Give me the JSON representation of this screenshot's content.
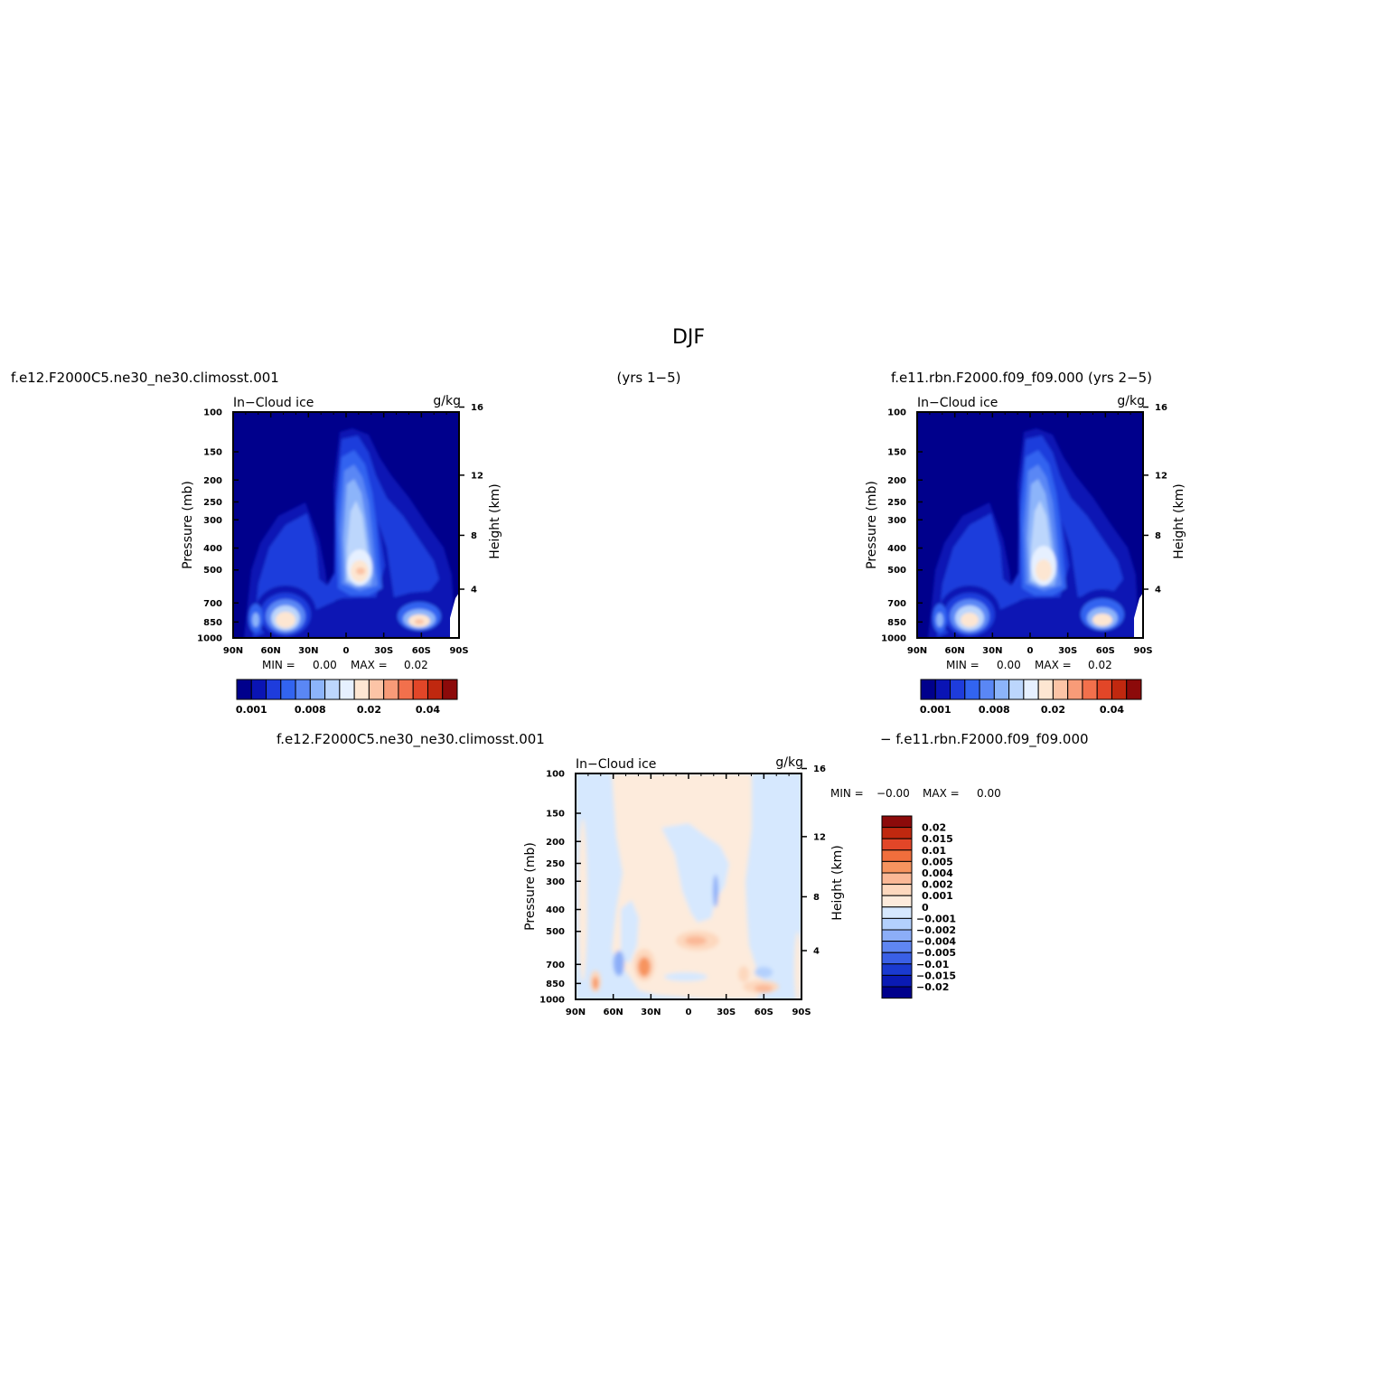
{
  "figure": {
    "title": "DJF",
    "top_left_label": "f.e12.F2000C5.ne30_ne30.climosst.001",
    "top_center_label": "(yrs 1−5)",
    "top_right_label": "f.e11.rbn.F2000.f09_f09.000 (yrs 2−5)",
    "bottom_left_label": "f.e12.F2000C5.ne30_ne30.climosst.001",
    "bottom_right_label": "− f.e11.rbn.F2000.f09_f09.000"
  },
  "colors": {
    "panel_ramp": [
      "#00008c",
      "#0a14b4",
      "#1e3cdc",
      "#3264f0",
      "#5a87f5",
      "#8cb4fa",
      "#bcd6fc",
      "#e6f0ff",
      "#fde6d2",
      "#fcc4a6",
      "#f89b78",
      "#f2704c",
      "#e24628",
      "#c0280f",
      "#8c0a0a"
    ],
    "diff_ramp": [
      "#8c0a0a",
      "#c0280f",
      "#e24628",
      "#f06e3c",
      "#f7945f",
      "#fbb896",
      "#fdd8be",
      "#fdebdc",
      "#d6e8fe",
      "#b3d0fd",
      "#8caef8",
      "#5f86f2",
      "#3a60e6",
      "#1a3ad0",
      "#0a1ab4",
      "#00008c"
    ]
  },
  "chart_data": [
    {
      "type": "heatmap",
      "title": "In−Cloud ice",
      "units": "g/kg",
      "xlabel": "",
      "ylabel": "Pressure (mb)",
      "ylabel_right": "Height (km)",
      "x_ticks": [
        "90N",
        "60N",
        "30N",
        "0",
        "30S",
        "60S",
        "90S"
      ],
      "y_ticks": [
        "100",
        "150",
        "200",
        "250",
        "300",
        "400",
        "500",
        "700",
        "850",
        "1000"
      ],
      "y_right_ticks": [
        "16",
        "12",
        "8",
        "4"
      ],
      "ylim": [
        1000,
        100
      ],
      "min_text": "MIN =",
      "min_value": "0.00",
      "max_text": "MAX =",
      "max_value": "0.02",
      "colorbar_labels": [
        "0.001",
        "0.008",
        "0.02",
        "0.04"
      ]
    },
    {
      "type": "heatmap",
      "title": "In−Cloud ice",
      "units": "g/kg",
      "xlabel": "",
      "ylabel": "Pressure (mb)",
      "ylabel_right": "Height (km)",
      "x_ticks": [
        "90N",
        "60N",
        "30N",
        "0",
        "30S",
        "60S",
        "90S"
      ],
      "y_ticks": [
        "100",
        "150",
        "200",
        "250",
        "300",
        "400",
        "500",
        "700",
        "850",
        "1000"
      ],
      "y_right_ticks": [
        "16",
        "12",
        "8",
        "4"
      ],
      "ylim": [
        1000,
        100
      ],
      "min_text": "MIN =",
      "min_value": "0.00",
      "max_text": "MAX =",
      "max_value": "0.02",
      "colorbar_labels": [
        "0.001",
        "0.008",
        "0.02",
        "0.04"
      ]
    },
    {
      "type": "heatmap",
      "title": "In−Cloud ice",
      "units": "g/kg",
      "xlabel": "",
      "ylabel": "Pressure (mb)",
      "ylabel_right": "Height (km)",
      "x_ticks": [
        "90N",
        "60N",
        "30N",
        "0",
        "30S",
        "60S",
        "90S"
      ],
      "y_ticks": [
        "100",
        "150",
        "200",
        "250",
        "300",
        "400",
        "500",
        "700",
        "850",
        "1000"
      ],
      "y_right_ticks": [
        "16",
        "12",
        "8",
        "4"
      ],
      "ylim": [
        1000,
        100
      ],
      "min_text": "MIN =",
      "min_value": "−0.00",
      "max_text": "MAX =",
      "max_value": "0.00",
      "colorbar_labels": [
        "0.02",
        "0.015",
        "0.01",
        "0.005",
        "0.004",
        "0.002",
        "0.001",
        "0",
        "−0.001",
        "−0.002",
        "−0.004",
        "−0.005",
        "−0.01",
        "−0.015",
        "−0.02"
      ]
    }
  ]
}
